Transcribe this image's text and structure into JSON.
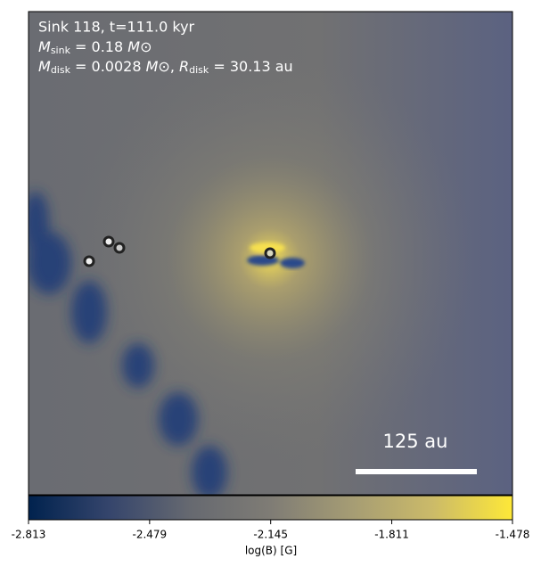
{
  "chart_data": {
    "type": "image",
    "annotations": {
      "line1": "Sink 118, t=111.0 kyr",
      "line2": [
        "M",
        "sink",
        " = 0.18 ",
        "M",
        "⊙"
      ],
      "line3": [
        "M",
        "disk",
        " = 0.0028 ",
        "M",
        "⊙",
        ", ",
        "R",
        "disk",
        " = 30.13 au"
      ]
    },
    "scale_bar_label": "125 au",
    "colorbar": {
      "label": "log(B) [G]",
      "clim": [
        -2.813,
        -1.478
      ],
      "ticks": [
        -2.813,
        -2.479,
        -2.145,
        -1.811,
        -1.478
      ],
      "colors": [
        "#00224e",
        "#35456c",
        "#666970",
        "#7f7c75",
        "#a59c74",
        "#cbba69",
        "#fee838"
      ]
    }
  }
}
